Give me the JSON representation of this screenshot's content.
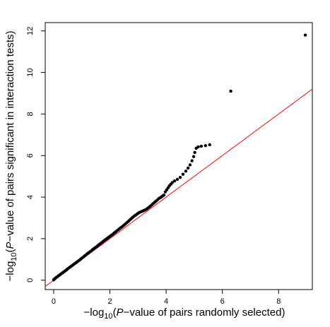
{
  "chart_data": {
    "type": "scatter",
    "xlabel": {
      "prefix": "−log",
      "sub": "10",
      "open": "(",
      "italic": "P",
      "rest": "−value of pairs randomly selected)"
    },
    "ylabel": {
      "prefix": "−log",
      "sub": "10",
      "open": "(",
      "italic": "P",
      "rest": "−value of pairs significant in interaction tests)"
    },
    "xlim": [
      -0.3,
      9.2
    ],
    "ylim": [
      -0.45,
      12.4
    ],
    "xticks": [
      0,
      2,
      4,
      6,
      8
    ],
    "yticks": [
      0,
      2,
      4,
      6,
      8,
      10,
      12
    ],
    "reference_line": {
      "intercept": 0,
      "slope": 1,
      "color": "#ff0000"
    },
    "point_color": "#000000",
    "series": [
      {
        "values": [
          [
            0.0,
            0.02
          ],
          [
            0.03,
            0.06
          ],
          [
            0.06,
            0.1
          ],
          [
            0.1,
            0.14
          ],
          [
            0.14,
            0.18
          ],
          [
            0.18,
            0.22
          ],
          [
            0.22,
            0.26
          ],
          [
            0.26,
            0.3
          ],
          [
            0.3,
            0.34
          ],
          [
            0.34,
            0.38
          ],
          [
            0.38,
            0.42
          ],
          [
            0.42,
            0.46
          ],
          [
            0.46,
            0.5
          ],
          [
            0.5,
            0.55
          ],
          [
            0.55,
            0.6
          ],
          [
            0.6,
            0.65
          ],
          [
            0.65,
            0.7
          ],
          [
            0.7,
            0.75
          ],
          [
            0.75,
            0.8
          ],
          [
            0.8,
            0.85
          ],
          [
            0.85,
            0.9
          ],
          [
            0.9,
            0.95
          ],
          [
            0.95,
            1.0
          ],
          [
            1.0,
            1.06
          ],
          [
            1.05,
            1.11
          ],
          [
            1.1,
            1.17
          ],
          [
            1.15,
            1.22
          ],
          [
            1.2,
            1.28
          ],
          [
            1.25,
            1.33
          ],
          [
            1.3,
            1.38
          ],
          [
            1.35,
            1.43
          ],
          [
            1.4,
            1.49
          ],
          [
            1.45,
            1.54
          ],
          [
            1.5,
            1.59
          ],
          [
            1.55,
            1.64
          ],
          [
            1.6,
            1.7
          ],
          [
            1.65,
            1.75
          ],
          [
            1.7,
            1.8
          ],
          [
            1.75,
            1.86
          ],
          [
            1.8,
            1.91
          ],
          [
            1.85,
            1.96
          ],
          [
            1.9,
            2.01
          ],
          [
            1.95,
            2.06
          ],
          [
            2.0,
            2.11
          ],
          [
            2.05,
            2.16
          ],
          [
            2.1,
            2.21
          ],
          [
            2.15,
            2.27
          ],
          [
            2.2,
            2.32
          ],
          [
            2.25,
            2.38
          ],
          [
            2.3,
            2.43
          ],
          [
            2.35,
            2.49
          ],
          [
            2.4,
            2.54
          ],
          [
            2.45,
            2.59
          ],
          [
            2.5,
            2.65
          ],
          [
            2.55,
            2.71
          ],
          [
            2.6,
            2.77
          ],
          [
            2.65,
            2.83
          ],
          [
            2.7,
            2.89
          ],
          [
            2.75,
            2.95
          ],
          [
            2.8,
            3.01
          ],
          [
            2.85,
            3.07
          ],
          [
            2.9,
            3.12
          ],
          [
            2.95,
            3.17
          ],
          [
            3.0,
            3.22
          ],
          [
            3.05,
            3.26
          ],
          [
            3.1,
            3.29
          ],
          [
            3.15,
            3.32
          ],
          [
            3.2,
            3.35
          ],
          [
            3.25,
            3.38
          ],
          [
            3.3,
            3.42
          ],
          [
            3.35,
            3.47
          ],
          [
            3.4,
            3.52
          ],
          [
            3.45,
            3.58
          ],
          [
            3.5,
            3.64
          ],
          [
            3.55,
            3.7
          ],
          [
            3.6,
            3.76
          ],
          [
            3.65,
            3.82
          ],
          [
            3.7,
            3.88
          ],
          [
            3.75,
            3.94
          ],
          [
            3.8,
            3.98
          ],
          [
            3.84,
            4.02
          ],
          [
            3.88,
            4.06
          ],
          [
            3.92,
            4.1
          ],
          [
            3.97,
            4.25
          ],
          [
            4.02,
            4.35
          ],
          [
            4.07,
            4.45
          ],
          [
            4.12,
            4.55
          ],
          [
            4.17,
            4.62
          ],
          [
            4.22,
            4.7
          ],
          [
            4.3,
            4.78
          ],
          [
            4.4,
            4.85
          ],
          [
            4.5,
            4.95
          ],
          [
            4.6,
            5.1
          ],
          [
            4.7,
            5.25
          ],
          [
            4.78,
            5.4
          ],
          [
            4.85,
            5.55
          ],
          [
            4.92,
            5.75
          ],
          [
            4.98,
            5.95
          ],
          [
            5.02,
            6.15
          ],
          [
            5.07,
            6.35
          ],
          [
            5.14,
            6.42
          ],
          [
            5.25,
            6.45
          ],
          [
            5.4,
            6.48
          ],
          [
            5.55,
            6.52
          ],
          [
            6.3,
            9.1
          ],
          [
            8.95,
            11.8
          ]
        ]
      }
    ]
  }
}
